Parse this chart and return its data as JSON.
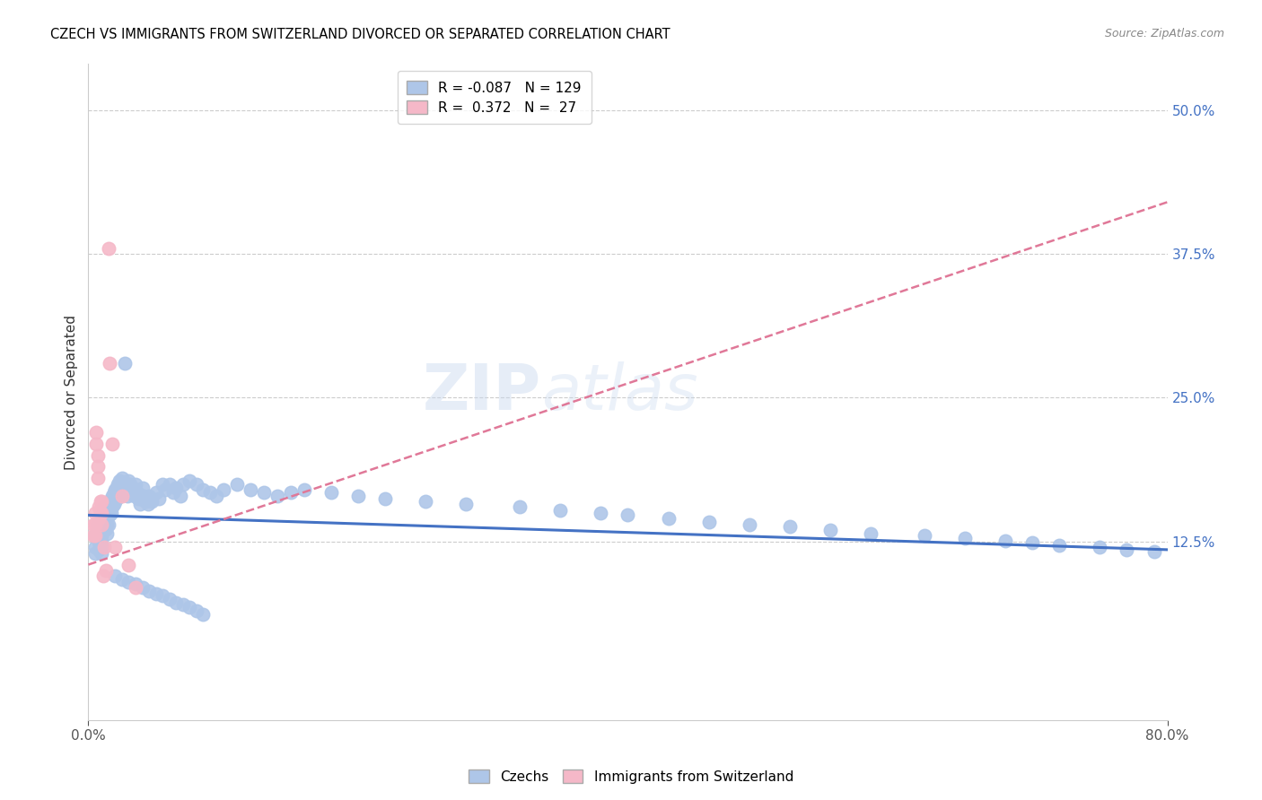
{
  "title": "CZECH VS IMMIGRANTS FROM SWITZERLAND DIVORCED OR SEPARATED CORRELATION CHART",
  "source": "Source: ZipAtlas.com",
  "ylabel": "Divorced or Separated",
  "ytick_labels": [
    "12.5%",
    "25.0%",
    "37.5%",
    "50.0%"
  ],
  "ytick_values": [
    0.125,
    0.25,
    0.375,
    0.5
  ],
  "xmin": 0.0,
  "xmax": 0.8,
  "ymin": -0.03,
  "ymax": 0.54,
  "watermark": "ZIPatlas",
  "legend_czech_R": "-0.087",
  "legend_czech_N": "129",
  "legend_swiss_R": " 0.372",
  "legend_swiss_N": "27",
  "czech_color": "#aec6e8",
  "swiss_color": "#f5b8c8",
  "czech_line_color": "#4472c4",
  "swiss_line_color": "#e07898",
  "czech_scatter_x": [
    0.005,
    0.005,
    0.005,
    0.007,
    0.007,
    0.008,
    0.008,
    0.009,
    0.009,
    0.009,
    0.01,
    0.01,
    0.01,
    0.01,
    0.01,
    0.01,
    0.01,
    0.011,
    0.011,
    0.011,
    0.012,
    0.012,
    0.012,
    0.013,
    0.013,
    0.013,
    0.014,
    0.014,
    0.014,
    0.015,
    0.015,
    0.015,
    0.016,
    0.016,
    0.017,
    0.017,
    0.018,
    0.018,
    0.019,
    0.019,
    0.02,
    0.02,
    0.021,
    0.021,
    0.022,
    0.022,
    0.023,
    0.023,
    0.024,
    0.025,
    0.025,
    0.026,
    0.027,
    0.028,
    0.029,
    0.03,
    0.03,
    0.031,
    0.032,
    0.033,
    0.034,
    0.035,
    0.036,
    0.037,
    0.038,
    0.04,
    0.041,
    0.042,
    0.044,
    0.045,
    0.047,
    0.05,
    0.052,
    0.055,
    0.057,
    0.06,
    0.063,
    0.065,
    0.068,
    0.07,
    0.075,
    0.08,
    0.085,
    0.09,
    0.095,
    0.1,
    0.11,
    0.12,
    0.13,
    0.14,
    0.15,
    0.16,
    0.18,
    0.2,
    0.22,
    0.25,
    0.28,
    0.32,
    0.35,
    0.38,
    0.4,
    0.43,
    0.46,
    0.49,
    0.52,
    0.55,
    0.58,
    0.62,
    0.65,
    0.68,
    0.7,
    0.72,
    0.75,
    0.77,
    0.79,
    0.02,
    0.025,
    0.03,
    0.035,
    0.04,
    0.045,
    0.05,
    0.055,
    0.06,
    0.065,
    0.07,
    0.075,
    0.08,
    0.085
  ],
  "czech_scatter_y": [
    0.13,
    0.12,
    0.115,
    0.14,
    0.135,
    0.125,
    0.118,
    0.13,
    0.125,
    0.12,
    0.145,
    0.14,
    0.135,
    0.13,
    0.125,
    0.12,
    0.115,
    0.15,
    0.145,
    0.14,
    0.155,
    0.148,
    0.138,
    0.152,
    0.144,
    0.136,
    0.148,
    0.14,
    0.132,
    0.155,
    0.148,
    0.14,
    0.158,
    0.148,
    0.162,
    0.15,
    0.165,
    0.155,
    0.168,
    0.158,
    0.17,
    0.16,
    0.172,
    0.162,
    0.175,
    0.165,
    0.178,
    0.168,
    0.172,
    0.18,
    0.17,
    0.175,
    0.28,
    0.175,
    0.165,
    0.178,
    0.168,
    0.175,
    0.168,
    0.172,
    0.165,
    0.175,
    0.168,
    0.162,
    0.158,
    0.172,
    0.165,
    0.16,
    0.158,
    0.165,
    0.16,
    0.168,
    0.162,
    0.175,
    0.17,
    0.175,
    0.168,
    0.172,
    0.165,
    0.175,
    0.178,
    0.175,
    0.17,
    0.168,
    0.165,
    0.17,
    0.175,
    0.17,
    0.168,
    0.165,
    0.168,
    0.17,
    0.168,
    0.165,
    0.162,
    0.16,
    0.158,
    0.155,
    0.152,
    0.15,
    0.148,
    0.145,
    0.142,
    0.14,
    0.138,
    0.135,
    0.132,
    0.13,
    0.128,
    0.126,
    0.124,
    0.122,
    0.12,
    0.118,
    0.116,
    0.095,
    0.092,
    0.09,
    0.088,
    0.085,
    0.082,
    0.08,
    0.078,
    0.075,
    0.072,
    0.07,
    0.068,
    0.065,
    0.062
  ],
  "swiss_scatter_x": [
    0.004,
    0.004,
    0.005,
    0.005,
    0.005,
    0.006,
    0.006,
    0.007,
    0.007,
    0.007,
    0.008,
    0.008,
    0.009,
    0.009,
    0.01,
    0.01,
    0.01,
    0.011,
    0.012,
    0.013,
    0.015,
    0.016,
    0.018,
    0.02,
    0.025,
    0.03,
    0.035
  ],
  "swiss_scatter_y": [
    0.14,
    0.13,
    0.15,
    0.14,
    0.13,
    0.22,
    0.21,
    0.2,
    0.19,
    0.18,
    0.155,
    0.145,
    0.16,
    0.15,
    0.16,
    0.15,
    0.14,
    0.095,
    0.12,
    0.1,
    0.38,
    0.28,
    0.21,
    0.12,
    0.165,
    0.105,
    0.085
  ],
  "czech_trendline_x": [
    0.0,
    0.8
  ],
  "czech_trendline_y": [
    0.148,
    0.118
  ],
  "swiss_trendline_x": [
    0.0,
    0.8
  ],
  "swiss_trendline_y": [
    0.105,
    0.42
  ]
}
